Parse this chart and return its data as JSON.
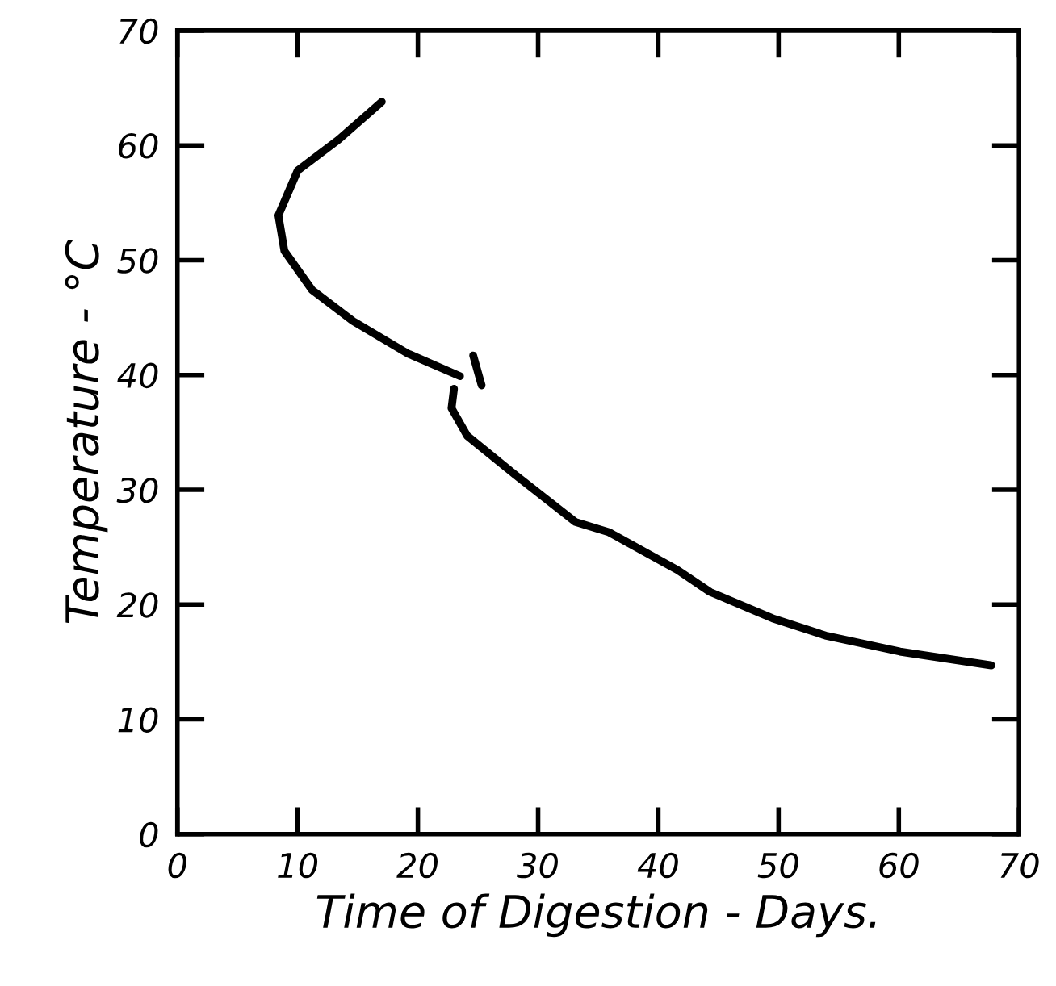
{
  "chart_data": {
    "type": "line",
    "xlabel": "Time of Digestion - Days.",
    "ylabel": "Temperature - °C",
    "series": [
      {
        "color": "#000000",
        "x": [
          17.0,
          13.4,
          10.0,
          8.4,
          8.9,
          11.2,
          14.6,
          19.1,
          23.5
        ],
        "values": [
          63.8,
          60.5,
          57.8,
          53.9,
          50.8,
          47.4,
          44.7,
          41.9,
          39.9
        ]
      },
      {
        "color": "#000000",
        "x": [
          24.6,
          25.3
        ],
        "values": [
          41.7,
          39.1
        ]
      },
      {
        "color": "#000000",
        "x": [
          23.0,
          22.8,
          24.1,
          28.1,
          33.1,
          35.9,
          41.6,
          44.3,
          49.5,
          53.9,
          60.1,
          67.7
        ],
        "values": [
          38.8,
          37.1,
          34.7,
          31.3,
          27.2,
          26.3,
          23.0,
          21.1,
          18.8,
          17.3,
          15.9,
          14.7
        ]
      }
    ],
    "xlim": [
      0,
      70
    ],
    "ylim": [
      0,
      70
    ],
    "xticks": [
      0,
      10,
      20,
      30,
      40,
      50,
      60,
      70
    ],
    "yticks": [
      0,
      10,
      20,
      30,
      40,
      50,
      60,
      70
    ],
    "grid": false,
    "legend": false,
    "marker": "none",
    "line_style": "solid"
  }
}
